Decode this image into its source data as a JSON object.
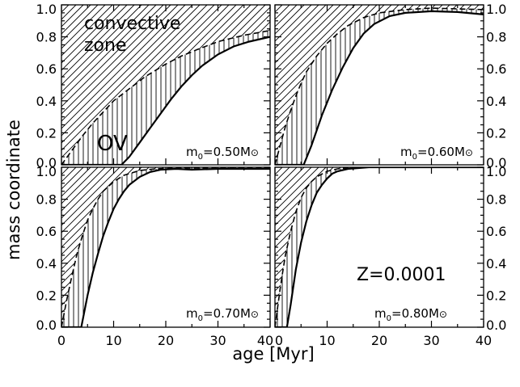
{
  "figure": {
    "ylabel": "mass coordinate",
    "xlabel": "age [Myr]",
    "annotations": {
      "convective_zone_line1": "convective",
      "convective_zone_line2": "zone",
      "ov": "OV",
      "metallicity": "Z=0.0001"
    },
    "axes": {
      "xlim": [
        0,
        40
      ],
      "ylim": [
        0,
        1.0
      ],
      "xticks": [
        "0",
        "10",
        "20",
        "30",
        "40"
      ],
      "yticks": [
        "0.0",
        "0.2",
        "0.4",
        "0.6",
        "0.8",
        "1.0"
      ],
      "grid": false,
      "layout": "2x2 panels sharing axes, left-column y labels on left, right-column y labels on right"
    },
    "style": {
      "line_color": "#000000",
      "background": "#ffffff"
    }
  },
  "chart_data": [
    {
      "type": "line",
      "panel_label": "m0=0.50M⊙",
      "label_parts": {
        "m": "m",
        "sub": "0",
        "eq": "=0.50M",
        "sun": "⊙"
      },
      "xlim": [
        0,
        40
      ],
      "ylim": [
        0,
        1.0
      ],
      "series": [
        {
          "style": "solid",
          "x": [
            0,
            11.5,
            13,
            15,
            17,
            19,
            21,
            23,
            25,
            27,
            30,
            33,
            36,
            40
          ],
          "y": [
            0,
            0,
            0.05,
            0.14,
            0.23,
            0.32,
            0.41,
            0.49,
            0.56,
            0.62,
            0.69,
            0.74,
            0.77,
            0.8
          ]
        },
        {
          "style": "dashed",
          "x": [
            0,
            2,
            4,
            6,
            8,
            10,
            12,
            14,
            16,
            18,
            20,
            23,
            26,
            30,
            35,
            40
          ],
          "y": [
            0,
            0.09,
            0.18,
            0.26,
            0.33,
            0.4,
            0.45,
            0.5,
            0.55,
            0.59,
            0.63,
            0.68,
            0.72,
            0.77,
            0.81,
            0.84
          ]
        }
      ]
    },
    {
      "type": "line",
      "panel_label": "m0=0.60M⊙",
      "label_parts": {
        "m": "m",
        "sub": "0",
        "eq": "=0.60M",
        "sun": "⊙"
      },
      "xlim": [
        0,
        40
      ],
      "ylim": [
        0,
        1.0
      ],
      "series": [
        {
          "style": "solid",
          "x": [
            0,
            5.5,
            7,
            9,
            11,
            13,
            15,
            17,
            19,
            22,
            25,
            30,
            35,
            40
          ],
          "y": [
            0,
            0,
            0.12,
            0.31,
            0.47,
            0.61,
            0.73,
            0.82,
            0.88,
            0.93,
            0.95,
            0.96,
            0.955,
            0.94
          ]
        },
        {
          "style": "dashed",
          "x": [
            0,
            1,
            2,
            3,
            4,
            5,
            6,
            8,
            10,
            12,
            14,
            17,
            20,
            25,
            30,
            35,
            40
          ],
          "y": [
            0,
            0.12,
            0.24,
            0.34,
            0.43,
            0.51,
            0.58,
            0.68,
            0.76,
            0.82,
            0.87,
            0.92,
            0.95,
            0.97,
            0.98,
            0.975,
            0.97
          ]
        }
      ]
    },
    {
      "type": "line",
      "panel_label": "m0=0.70M⊙",
      "label_parts": {
        "m": "m",
        "sub": "0",
        "eq": "=0.70M",
        "sun": "⊙"
      },
      "xlim": [
        0,
        40
      ],
      "ylim": [
        0,
        1.0
      ],
      "series": [
        {
          "style": "solid",
          "x": [
            0,
            3.8,
            5,
            6,
            7,
            8,
            9,
            10,
            11,
            12,
            13,
            15,
            17,
            19,
            22,
            25,
            30,
            35,
            40
          ],
          "y": [
            0,
            0,
            0.2,
            0.34,
            0.46,
            0.57,
            0.66,
            0.74,
            0.8,
            0.85,
            0.89,
            0.94,
            0.97,
            0.985,
            0.99,
            0.985,
            0.99,
            0.99,
            0.99
          ]
        },
        {
          "style": "dashed",
          "x": [
            0,
            1,
            2,
            3,
            4,
            5,
            6,
            7,
            8,
            10,
            12,
            15,
            18,
            22,
            30,
            40
          ],
          "y": [
            0,
            0.17,
            0.32,
            0.46,
            0.57,
            0.67,
            0.74,
            0.8,
            0.85,
            0.91,
            0.95,
            0.98,
            0.99,
            0.995,
            0.995,
            0.995
          ]
        }
      ]
    },
    {
      "type": "line",
      "panel_label": "m0=0.80M⊙",
      "label_parts": {
        "m": "m",
        "sub": "0",
        "eq": "=0.80M",
        "sun": "⊙"
      },
      "xlim": [
        0,
        40
      ],
      "ylim": [
        0,
        1.0
      ],
      "series": [
        {
          "style": "solid",
          "x": [
            0,
            2.3,
            3,
            4,
            5,
            6,
            7,
            8,
            9,
            10,
            11,
            12,
            14,
            16,
            18,
            20,
            25,
            30,
            35,
            40
          ],
          "y": [
            0,
            0,
            0.14,
            0.36,
            0.53,
            0.66,
            0.76,
            0.84,
            0.89,
            0.93,
            0.96,
            0.975,
            0.99,
            0.995,
            1.0,
            1.0,
            1.0,
            1.0,
            1.0,
            1.0
          ]
        },
        {
          "style": "dashed",
          "x": [
            0,
            0.5,
            1,
            1.5,
            2,
            3,
            4,
            5,
            6,
            7,
            8,
            10,
            12,
            15,
            20,
            30,
            40
          ],
          "y": [
            0,
            0.12,
            0.24,
            0.35,
            0.45,
            0.6,
            0.72,
            0.81,
            0.87,
            0.91,
            0.94,
            0.975,
            0.99,
            1.0,
            1.0,
            1.0,
            1.0
          ]
        }
      ]
    }
  ]
}
